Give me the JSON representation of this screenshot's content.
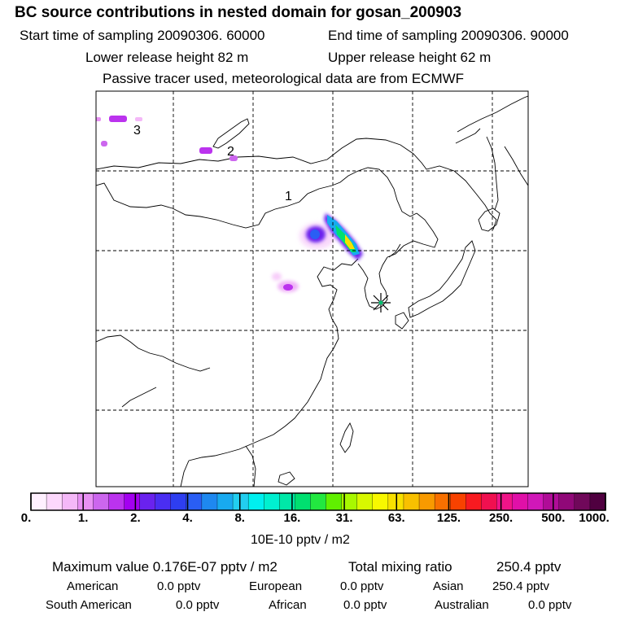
{
  "header": {
    "title": "BC  source contributions in nested domain for gosan_200903",
    "start_time": "Start time of sampling 20090306. 60000",
    "end_time": "End time of sampling 20090306. 90000",
    "lower_release": "Lower release height   82 m",
    "upper_release": "Upper release height   62 m",
    "tracer_note": "Passive tracer used, meteorological data are from ECMWF"
  },
  "map": {
    "region_labels": [
      "1",
      "2",
      "3"
    ],
    "receptor_marker": "station-star",
    "grid_style": "dashed"
  },
  "colorbar": {
    "tick_labels": [
      "0.",
      "1.",
      "2.",
      "4.",
      "8.",
      "16.",
      "31.",
      "63.",
      "125.",
      "250.",
      "500.",
      "1000."
    ],
    "colors": [
      "#fff0ff",
      "#fcd8fc",
      "#f4b8f8",
      "#e890f4",
      "#cc66ee",
      "#bb33ee",
      "#a300f0",
      "#6a22ee",
      "#4a2ef2",
      "#2e3ef0",
      "#2a5ef4",
      "#1e88f0",
      "#18aaf0",
      "#22cef0",
      "#00f0f0",
      "#00f0d0",
      "#00e8a8",
      "#00e070",
      "#22e840",
      "#60f000",
      "#a8f800",
      "#d8f800",
      "#f8f800",
      "#f8e000",
      "#f8c000",
      "#f89a00",
      "#f87000",
      "#f84200",
      "#f81a20",
      "#f01050",
      "#f01488",
      "#e010a8",
      "#d018b8",
      "#b00c98",
      "#900878",
      "#70085a",
      "#500040"
    ],
    "unit_label": "10E-10 pptv / m2"
  },
  "summary": {
    "max_label": "Maximum value  0.176E-07 pptv / m2",
    "total_label": "Total mixing ratio",
    "total_value": "250.4 pptv",
    "regions": [
      {
        "name": "American",
        "value": "0.0 pptv"
      },
      {
        "name": "European",
        "value": "0.0 pptv"
      },
      {
        "name": "Asian",
        "value": "250.4 pptv"
      },
      {
        "name": "South American",
        "value": "0.0 pptv"
      },
      {
        "name": "African",
        "value": "0.0 pptv"
      },
      {
        "name": "Australian",
        "value": "0.0 pptv"
      }
    ]
  }
}
